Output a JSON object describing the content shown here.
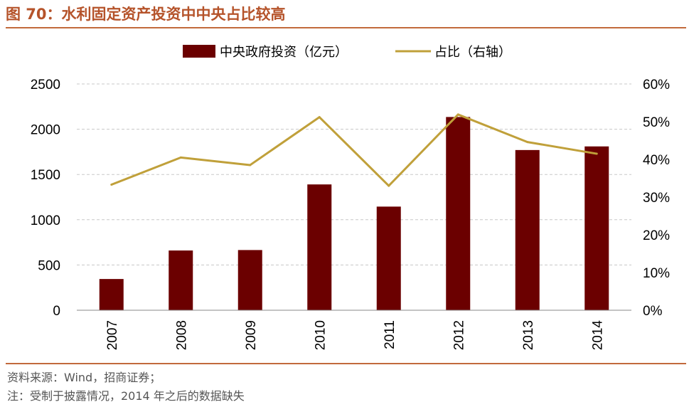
{
  "title": "图 70：水利固定资产投资中中央占比较高",
  "footnotes": {
    "source": "资料来源：Wind，招商证券；",
    "note": "注：受制于披露情况，2014 年之后的数据缺失"
  },
  "colors": {
    "bar": "#6b0000",
    "line": "#c0a03a",
    "title": "#b5532a",
    "grid": "#c8c8c8"
  },
  "chart_data": {
    "type": "bar",
    "categories": [
      "2007",
      "2008",
      "2009",
      "2010",
      "2011",
      "2012",
      "2013",
      "2014"
    ],
    "series": [
      {
        "name": "中央政府投资（亿元）",
        "type": "bar",
        "axis": "left",
        "values": [
          345,
          660,
          665,
          1390,
          1145,
          2135,
          1770,
          1810
        ]
      },
      {
        "name": "占比（右轴）",
        "type": "line",
        "axis": "right",
        "values": [
          33.3,
          40.5,
          38.5,
          51.2,
          33.0,
          51.9,
          44.6,
          41.5
        ]
      }
    ],
    "ylim": [
      0,
      2500
    ],
    "yticks": [
      0,
      500,
      1000,
      1500,
      2000,
      2500
    ],
    "y2lim": [
      0,
      60
    ],
    "y2ticks": [
      "0%",
      "10%",
      "20%",
      "30%",
      "40%",
      "50%",
      "60%"
    ],
    "grid": true,
    "legend": "top-center"
  }
}
